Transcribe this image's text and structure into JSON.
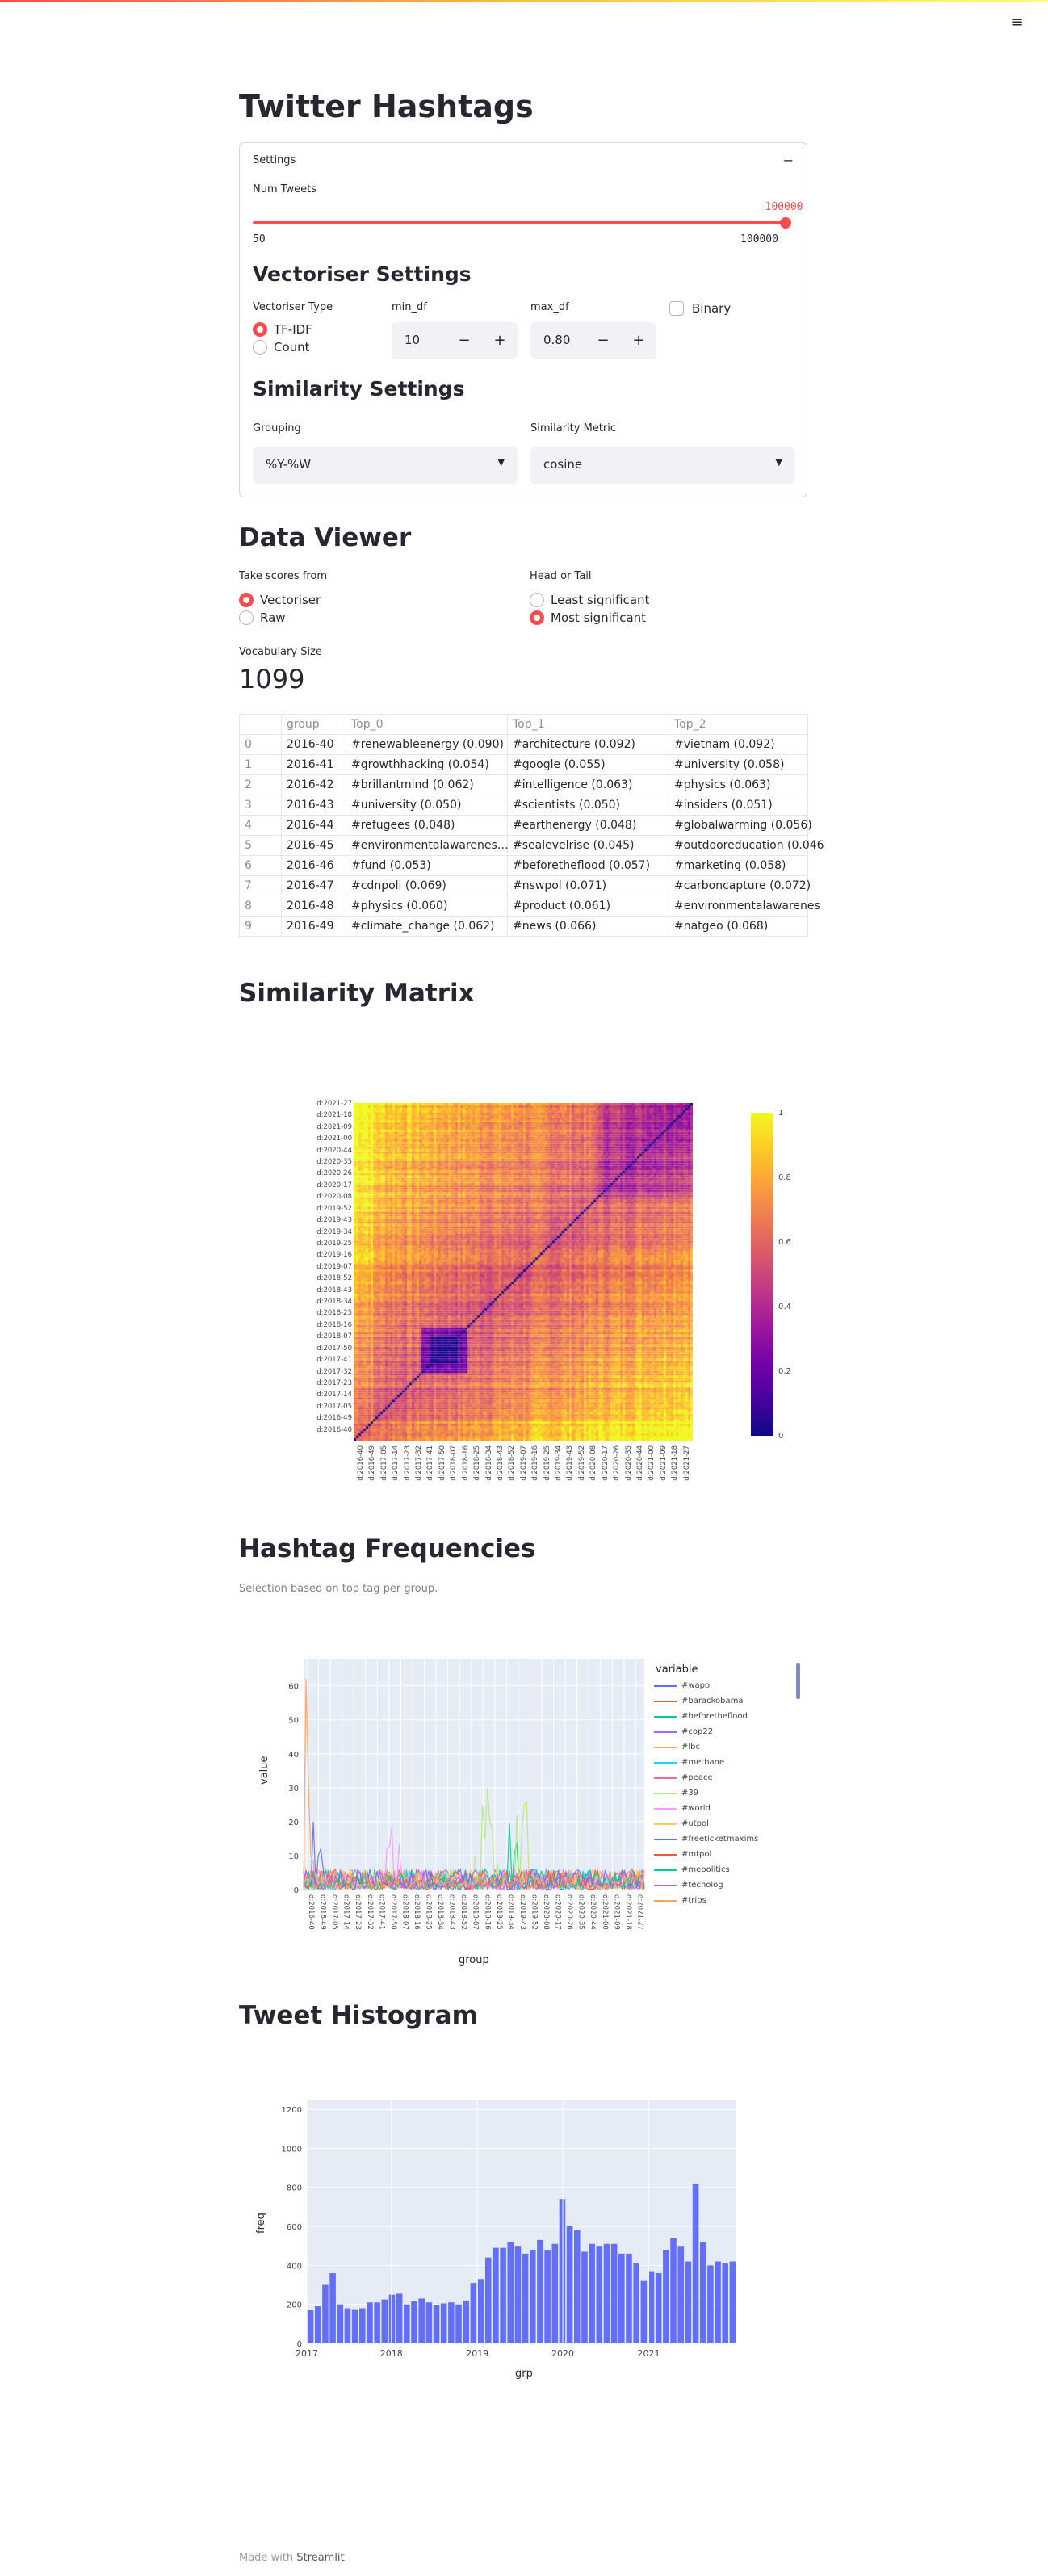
{
  "app": {
    "title": "Twitter Hashtags",
    "menu_icon": "hamburger-icon"
  },
  "settings": {
    "expander_label": "Settings",
    "collapse_glyph": "−",
    "num_tweets_label": "Num Tweets",
    "num_tweets_value": "100000",
    "num_tweets_min": "50",
    "num_tweets_max": "100000",
    "num_tweets_fraction": 1.0,
    "vectoriser_heading": "Vectoriser Settings",
    "vectoriser_type_label": "Vectoriser Type",
    "vectoriser_options": [
      "TF-IDF",
      "Count"
    ],
    "min_df_label": "min_df",
    "min_df_value": "10",
    "max_df_label": "max_df",
    "max_df_value": "0.80",
    "binary_label": "Binary",
    "similarity_heading": "Similarity Settings",
    "grouping_label": "Grouping",
    "grouping_value": "%Y-%W",
    "metric_label": "Similarity Metric",
    "metric_value": "cosine",
    "minus": "−",
    "plus": "+"
  },
  "data_viewer": {
    "heading": "Data Viewer",
    "scores_label": "Take scores from",
    "scores_options": [
      "Vectoriser",
      "Raw"
    ],
    "head_tail_label": "Head or Tail",
    "head_tail_options": [
      "Least significant",
      "Most significant"
    ],
    "vocab_label": "Vocabulary Size",
    "vocab_value": "1099",
    "columns": [
      "",
      "group",
      "Top_0",
      "Top_1",
      "Top_2"
    ],
    "rows": [
      [
        "0",
        "2016-40",
        "#renewableenergy (0.090)",
        "#architecture (0.092)",
        "#vietnam (0.092)"
      ],
      [
        "1",
        "2016-41",
        "#growthhacking (0.054)",
        "#google (0.055)",
        "#university (0.058)"
      ],
      [
        "2",
        "2016-42",
        "#brillantmind (0.062)",
        "#intelligence (0.063)",
        "#physics (0.063)"
      ],
      [
        "3",
        "2016-43",
        "#university (0.050)",
        "#scientists (0.050)",
        "#insiders (0.051)"
      ],
      [
        "4",
        "2016-44",
        "#refugees (0.048)",
        "#earthenergy (0.048)",
        "#globalwarming (0.056)"
      ],
      [
        "5",
        "2016-45",
        "#environmentalawarenes…",
        "#sealevelrise (0.045)",
        "#outdooreducation (0.046"
      ],
      [
        "6",
        "2016-46",
        "#fund (0.053)",
        "#beforetheflood (0.057)",
        "#marketing (0.058)"
      ],
      [
        "7",
        "2016-47",
        "#cdnpoli (0.069)",
        "#nswpol (0.071)",
        "#carboncapture (0.072)"
      ],
      [
        "8",
        "2016-48",
        "#physics (0.060)",
        "#product (0.061)",
        "#environmentalawarenes"
      ],
      [
        "9",
        "2016-49",
        "#climate_change (0.062)",
        "#news (0.066)",
        "#natgeo (0.068)"
      ]
    ]
  },
  "similarity": {
    "heading": "Similarity Matrix",
    "y_ticks": [
      "d:2021-27",
      "d:2021-18",
      "d:2021-09",
      "d:2021-00",
      "d:2020-44",
      "d:2020-35",
      "d:2020-26",
      "d:2020-17",
      "d:2020-08",
      "d:2019-52",
      "d:2019-43",
      "d:2019-34",
      "d:2019-25",
      "d:2019-16",
      "d:2019-07",
      "d:2018-52",
      "d:2018-43",
      "d:2018-34",
      "d:2018-25",
      "d:2018-16",
      "d:2018-07",
      "d:2017-50",
      "d:2017-41",
      "d:2017-32",
      "d:2017-23",
      "d:2017-14",
      "d:2017-05",
      "d:2016-49",
      "d:2016-40"
    ],
    "x_ticks": [
      "d:2016-40",
      "d:2016-49",
      "d:2017-05",
      "d:2017-14",
      "d:2017-23",
      "d:2017-32",
      "d:2017-41",
      "d:2017-50",
      "d:2018-07",
      "d:2018-16",
      "d:2018-25",
      "d:2018-34",
      "d:2018-43",
      "d:2018-52",
      "d:2019-07",
      "d:2019-16",
      "d:2019-25",
      "d:2019-34",
      "d:2019-43",
      "d:2019-52",
      "d:2020-08",
      "d:2020-17",
      "d:2020-26",
      "d:2020-35",
      "d:2020-44",
      "d:2021-00",
      "d:2021-09",
      "d:2021-18",
      "d:2021-27"
    ],
    "colorbar_ticks": [
      "1",
      "0.8",
      "0.6",
      "0.4",
      "0.2",
      "0"
    ]
  },
  "frequencies": {
    "heading": "Hashtag Frequencies",
    "caption": "Selection based on top tag per group.",
    "legend_title": "variable",
    "ylabel": "value",
    "xlabel": "group",
    "legend": [
      {
        "name": "#wapol",
        "color": "#636efa"
      },
      {
        "name": "#barackobama",
        "color": "#ef553b"
      },
      {
        "name": "#beforetheflood",
        "color": "#00cc96"
      },
      {
        "name": "#cop22",
        "color": "#ab63fa"
      },
      {
        "name": "#lbc",
        "color": "#ffa15a"
      },
      {
        "name": "#methane",
        "color": "#19d3f3"
      },
      {
        "name": "#peace",
        "color": "#ff6692"
      },
      {
        "name": "#39",
        "color": "#b6e880"
      },
      {
        "name": "#world",
        "color": "#ff97ff"
      },
      {
        "name": "#utpol",
        "color": "#fecb52"
      },
      {
        "name": "#freeticketmaxims",
        "color": "#636efa"
      },
      {
        "name": "#mtpol",
        "color": "#ef553b"
      },
      {
        "name": "#mepolitics",
        "color": "#00cc96"
      },
      {
        "name": "#tecnolog",
        "color": "#ab63fa"
      },
      {
        "name": "#trips",
        "color": "#ffa15a"
      }
    ],
    "y_ticks": [
      "60",
      "50",
      "40",
      "30",
      "20",
      "10",
      "0"
    ],
    "x_ticks": [
      "d:2016-40",
      "d:2016-49",
      "d:2017-05",
      "d:2017-14",
      "d:2017-23",
      "d:2017-32",
      "d:2017-41",
      "d:2017-50",
      "d:2018-07",
      "d:2018-16",
      "d:2018-25",
      "d:2018-34",
      "d:2018-43",
      "d:2018-52",
      "d:2019-07",
      "d:2019-16",
      "d:2019-25",
      "d:2019-34",
      "d:2019-43",
      "d:2019-52",
      "d:2020-08",
      "d:2020-17",
      "d:2020-26",
      "d:2020-35",
      "d:2020-44",
      "d:2021-00",
      "d:2021-09",
      "d:2021-18",
      "d:2021-27"
    ]
  },
  "histogram": {
    "heading": "Tweet Histogram"
  },
  "chart_data": [
    {
      "type": "bar",
      "title": "Tweet Histogram",
      "xlabel": "grp",
      "ylabel": "freq",
      "ylim": [
        0,
        1250
      ],
      "x_ticks": [
        "2017",
        "2018",
        "2019",
        "2020",
        "2021"
      ],
      "y_ticks": [
        "0",
        "200",
        "400",
        "600",
        "800",
        "1000",
        "1200"
      ],
      "color": "#636efa",
      "values": [
        170,
        190,
        300,
        360,
        200,
        180,
        175,
        180,
        210,
        210,
        225,
        250,
        255,
        200,
        215,
        230,
        210,
        195,
        205,
        210,
        200,
        220,
        310,
        330,
        440,
        490,
        490,
        520,
        500,
        460,
        480,
        530,
        480,
        510,
        740,
        600,
        580,
        470,
        510,
        500,
        510,
        510,
        460,
        460,
        410,
        320,
        370,
        360,
        480,
        540,
        500,
        420,
        820,
        520,
        400,
        420,
        410,
        420
      ]
    }
  ]
}
